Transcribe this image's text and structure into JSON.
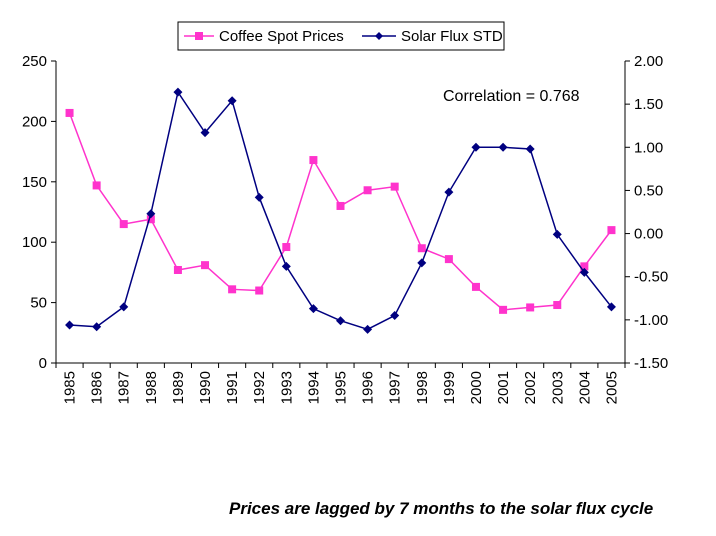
{
  "chart_data": {
    "type": "line",
    "title": "",
    "categories": [
      "1985",
      "1986",
      "1987",
      "1988",
      "1989",
      "1990",
      "1991",
      "1992",
      "1993",
      "1994",
      "1995",
      "1996",
      "1997",
      "1998",
      "1999",
      "2000",
      "2001",
      "2002",
      "2003",
      "2004",
      "2005"
    ],
    "series": [
      {
        "name": "Coffee Spot Prices",
        "axis": "left",
        "color": "#ff33cc",
        "marker": "square",
        "values": [
          207,
          147,
          115,
          119,
          77,
          81,
          61,
          60,
          96,
          168,
          130,
          143,
          146,
          95,
          86,
          63,
          44,
          46,
          48,
          80,
          110
        ]
      },
      {
        "name": "Solar Flux STD",
        "axis": "right",
        "color": "#000080",
        "marker": "diamond",
        "values": [
          -1.06,
          -1.08,
          -0.85,
          0.23,
          1.64,
          1.17,
          1.54,
          0.42,
          -0.38,
          -0.87,
          -1.01,
          -1.11,
          -0.95,
          -0.34,
          0.48,
          1.0,
          1.0,
          0.98,
          -0.01,
          -0.45,
          -0.85
        ]
      }
    ],
    "left_axis": {
      "label": "",
      "ylim": [
        0,
        250
      ],
      "ticks": [
        "0",
        "50",
        "100",
        "150",
        "200",
        "250"
      ],
      "tick_values": [
        0,
        50,
        100,
        150,
        200,
        250
      ]
    },
    "right_axis": {
      "label": "",
      "ylim": [
        -1.5,
        2.0
      ],
      "ticks": [
        "-1.50",
        "-1.00",
        "-0.50",
        "0.00",
        "0.50",
        "1.00",
        "1.50",
        "2.00"
      ],
      "tick_values": [
        -1.5,
        -1.0,
        -0.5,
        0.0,
        0.5,
        1.0,
        1.5,
        2.0
      ]
    },
    "xlabel": "",
    "grid": false,
    "legend": {
      "position": "top-center",
      "entries": [
        "Coffee Spot Prices",
        "Solar Flux STD"
      ]
    },
    "annotation": "Correlation = 0.768"
  },
  "caption": "Prices are lagged by 7 months to the solar flux cycle"
}
